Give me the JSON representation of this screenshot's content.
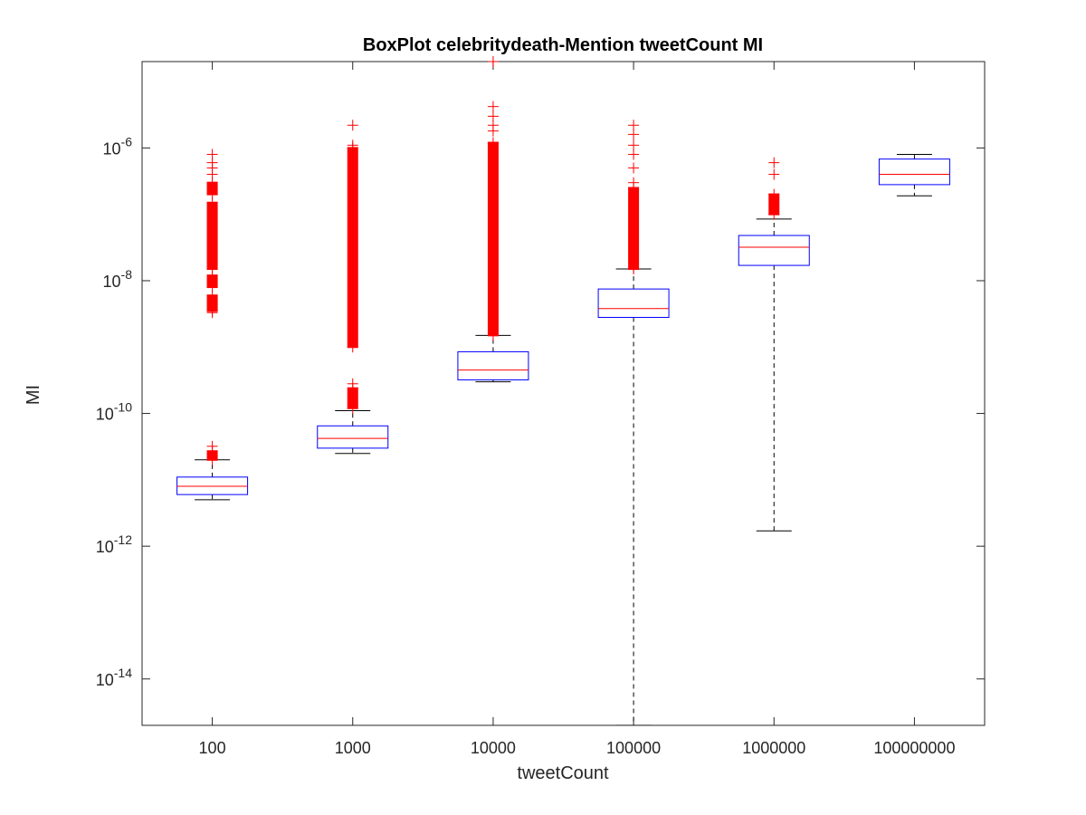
{
  "chart_data": {
    "type": "box",
    "title": "BoxPlot celebritydeath-Mention tweetCount MI",
    "xlabel": "tweetCount",
    "ylabel": "MI",
    "yscale": "log",
    "ylim": [
      2e-15,
      2e-05
    ],
    "ytick_exponents": [
      -14,
      -12,
      -10,
      -8,
      -6
    ],
    "ytick_labels": [
      "10^-14",
      "10^-12",
      "10^-10",
      "10^-8",
      "10^-6"
    ],
    "categories": [
      "100",
      "1000",
      "10000",
      "100000",
      "1000000",
      "100000000"
    ],
    "boxes": [
      {
        "category": "100",
        "whisker_low": 5e-12,
        "q1": 6e-12,
        "median": 8e-12,
        "q3": 1.1e-11,
        "whisker_high": 2e-11,
        "outliers": {
          "ranges": [
            [
              2e-11,
              2.7e-11
            ],
            [
              3.5e-09,
              6e-09
            ],
            [
              8e-09,
              1.2e-08
            ],
            [
              1.5e-08,
              1.5e-07
            ],
            [
              2e-07,
              3e-07
            ]
          ],
          "points": [
            3.2e-11,
            3.3e-09,
            4e-07,
            5e-07,
            6e-07,
            8e-07
          ]
        }
      },
      {
        "category": "1000",
        "whisker_low": 2.5e-11,
        "q1": 3e-11,
        "median": 4.2e-11,
        "q3": 6.5e-11,
        "whisker_high": 1.1e-10,
        "outliers": {
          "ranges": [
            [
              1.2e-10,
              2.4e-10
            ],
            [
              1e-09,
              1e-06
            ]
          ],
          "points": [
            2.8e-10,
            1.1e-06,
            2.2e-06
          ]
        }
      },
      {
        "category": "10000",
        "whisker_low": 3e-10,
        "q1": 3.2e-10,
        "median": 4.5e-10,
        "q3": 8.5e-10,
        "whisker_high": 1.5e-09,
        "outliers": {
          "ranges": [
            [
              1.5e-09,
              1.2e-06
            ]
          ],
          "points": [
            1.8e-06,
            2.2e-06,
            3e-06,
            4.2e-06,
            2e-05
          ]
        }
      },
      {
        "category": "100000",
        "whisker_low": 2e-15,
        "q1": 2.8e-09,
        "median": 3.8e-09,
        "q3": 7.5e-09,
        "whisker_high": 1.5e-08,
        "outliers": {
          "ranges": [
            [
              1.5e-08,
              2.5e-07
            ]
          ],
          "points": [
            3e-07,
            5e-07,
            8e-07,
            1.1e-06,
            1.6e-06,
            2.2e-06
          ]
        }
      },
      {
        "category": "1000000",
        "whisker_low": 1.7e-12,
        "q1": 1.7e-08,
        "median": 3.2e-08,
        "q3": 4.8e-08,
        "whisker_high": 8.5e-08,
        "outliers": {
          "ranges": [
            [
              1e-07,
              2e-07
            ]
          ],
          "points": [
            4e-07,
            6e-07
          ]
        }
      },
      {
        "category": "100000000",
        "whisker_low": 1.9e-07,
        "q1": 2.8e-07,
        "median": 4e-07,
        "q3": 6.8e-07,
        "whisker_high": 8e-07,
        "outliers": {
          "ranges": [],
          "points": []
        }
      }
    ],
    "grid": false,
    "colors": {
      "box": "#0000ff",
      "median": "#ff0000",
      "outlier": "#ff0000",
      "whisker": "#000000",
      "axis": "#262626"
    }
  }
}
